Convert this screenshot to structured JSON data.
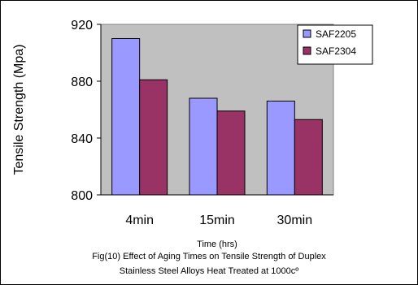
{
  "chart_data": {
    "type": "bar",
    "categories": [
      "4min",
      "15min",
      "30min"
    ],
    "series": [
      {
        "name": "SAF2205",
        "values": [
          910,
          868,
          866
        ],
        "color": "#9999FF"
      },
      {
        "name": "SAF2304",
        "values": [
          881,
          859,
          853
        ],
        "color": "#993366"
      }
    ],
    "ylabel": "Tensile Strength (Mpa)",
    "xlabel": "Time (hrs)",
    "ylim": [
      800,
      920
    ],
    "yticks": [
      800,
      840,
      880,
      920
    ],
    "plot_background": "#C0C0C0",
    "grid": false,
    "legend_position": "top-right"
  },
  "caption": {
    "line1": "Fig(10) Effect of Aging Times on Tensile Strength of Duplex",
    "line2": "Stainless Steel Alloys Heat Treated at 1000cº"
  }
}
